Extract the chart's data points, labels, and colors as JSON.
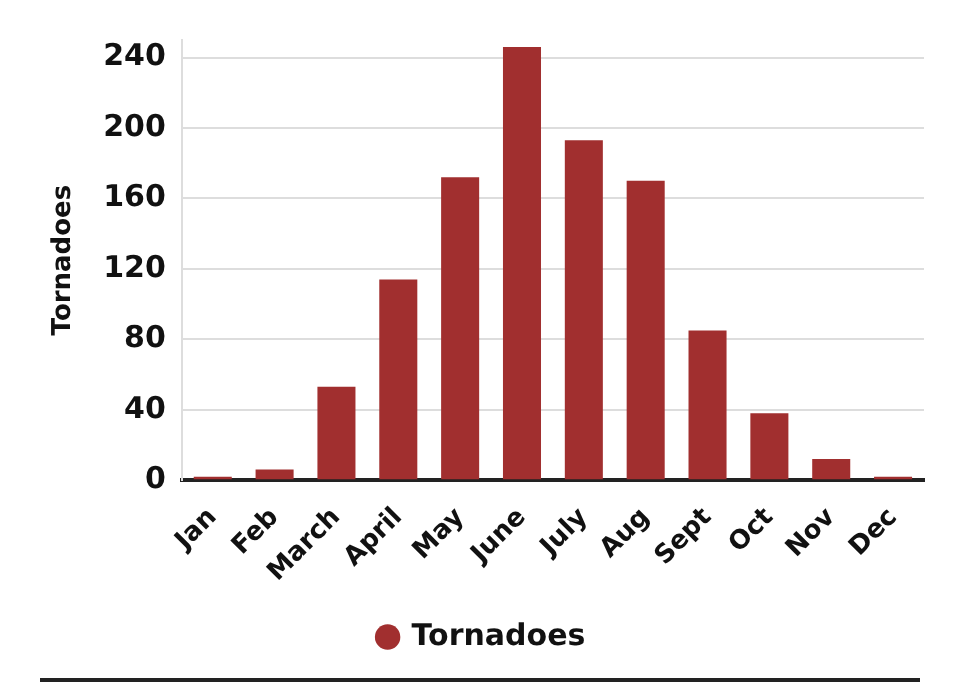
{
  "chart_data": {
    "type": "bar",
    "ylabel": "Tornadoes",
    "categories": [
      "Jan",
      "Feb",
      "March",
      "April",
      "May",
      "June",
      "July",
      "Aug",
      "Sept",
      "Oct",
      "Nov",
      "Dec"
    ],
    "series": [
      {
        "name": "Tornadoes",
        "color": "#a12f2f",
        "values": [
          2,
          6,
          53,
          114,
          172,
          246,
          193,
          170,
          85,
          38,
          12,
          2
        ]
      }
    ],
    "yticks": [
      0,
      40,
      80,
      120,
      160,
      200,
      240
    ],
    "ylim": [
      0,
      250
    ],
    "grid": "y",
    "legend": "bottom"
  }
}
